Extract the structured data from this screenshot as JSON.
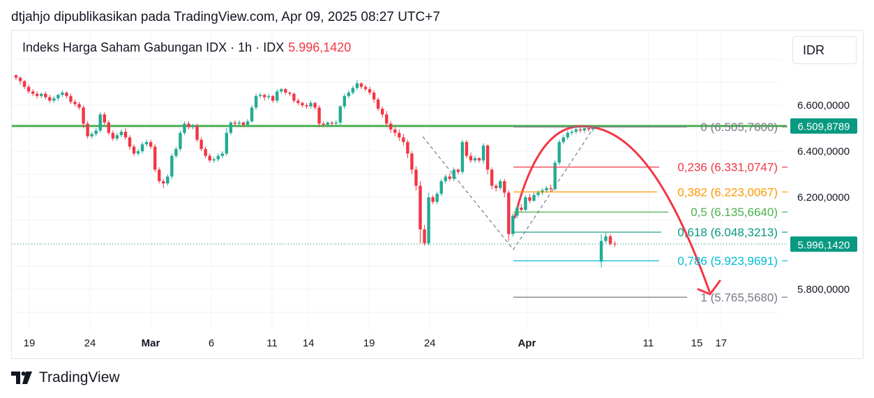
{
  "header": {
    "text": "dtjahjo dipublikasikan pada TradingView.com, Apr 09, 2025 08:27 UTC+7"
  },
  "legend": {
    "symbol": "Indeks Harga Saham Gabungan IDX · 1h · IDX",
    "price": "5.996,1420"
  },
  "currency": "IDR",
  "footer": {
    "brand": "TradingView"
  },
  "colors": {
    "up": "#22ab94",
    "down": "#f23645",
    "support": "#4caf50",
    "arrow": "#f23645",
    "grid": "#f0f3fa"
  },
  "chart_data": {
    "type": "candlestick",
    "y_ticks": [
      {
        "value": 6600,
        "label": "6.600,0000"
      },
      {
        "value": 6400,
        "label": "6.400,0000"
      },
      {
        "value": 6200,
        "label": "6.200,0000"
      },
      {
        "value": 5800,
        "label": "5.800,0000"
      }
    ],
    "x_ticks": [
      {
        "day": 19,
        "label": "19",
        "bold": false
      },
      {
        "day": 24,
        "label": "24",
        "bold": false
      },
      {
        "day": 29,
        "label": "Mar",
        "bold": true
      },
      {
        "day": 34,
        "label": "6",
        "bold": false
      },
      {
        "day": 39,
        "label": "11",
        "bold": false
      },
      {
        "day": 42,
        "label": "14",
        "bold": false
      },
      {
        "day": 47,
        "label": "19",
        "bold": false
      },
      {
        "day": 52,
        "label": "24",
        "bold": false
      },
      {
        "day": 60,
        "label": "Apr",
        "bold": true
      },
      {
        "day": 70,
        "label": "11",
        "bold": false
      },
      {
        "day": 74,
        "label": "15",
        "bold": false
      },
      {
        "day": 76,
        "label": "17",
        "bold": false
      }
    ],
    "last_price": {
      "value": 5996.142,
      "label": "5.996,1420"
    },
    "support_line": {
      "value": 6509.8789,
      "label": "6.509,8789"
    },
    "fibonacci": [
      {
        "label": "0 (6.505,7600)",
        "value": 6505.76,
        "color": "#787b86"
      },
      {
        "label": "0,236 (6.331,0747)",
        "value": 6331.0747,
        "color": "#f23645"
      },
      {
        "label": "0,382 (6.223,0067)",
        "value": 6223.0067,
        "color": "#ff9800"
      },
      {
        "label": "0,5 (6.135,6640)",
        "value": 6135.664,
        "color": "#4caf50"
      },
      {
        "label": "0,618 (6.048,3213)",
        "value": 6048.3213,
        "color": "#089981"
      },
      {
        "label": "0,786 (5.923,9691)",
        "value": 5923.9691,
        "color": "#00bcd4"
      },
      {
        "label": "1 (5.765,5680)",
        "value": 5765.568,
        "color": "#787b86"
      }
    ],
    "candles": [
      [
        6730,
        6720,
        6735,
        6710
      ],
      [
        6720,
        6705,
        6725,
        6690
      ],
      [
        6705,
        6680,
        6710,
        6670
      ],
      [
        6680,
        6660,
        6690,
        6650
      ],
      [
        6660,
        6650,
        6670,
        6640
      ],
      [
        6650,
        6640,
        6660,
        6630
      ],
      [
        6640,
        6650,
        6655,
        6630
      ],
      [
        6650,
        6635,
        6660,
        6625
      ],
      [
        6635,
        6620,
        6645,
        6610
      ],
      [
        6620,
        6630,
        6640,
        6610
      ],
      [
        6630,
        6645,
        6650,
        6620
      ],
      [
        6645,
        6655,
        6665,
        6635
      ],
      [
        6655,
        6640,
        6660,
        6630
      ],
      [
        6640,
        6615,
        6650,
        6605
      ],
      [
        6615,
        6605,
        6625,
        6595
      ],
      [
        6605,
        6590,
        6615,
        6580
      ],
      [
        6590,
        6520,
        6600,
        6500
      ],
      [
        6520,
        6465,
        6530,
        6455
      ],
      [
        6465,
        6475,
        6485,
        6455
      ],
      [
        6475,
        6490,
        6500,
        6465
      ],
      [
        6490,
        6560,
        6570,
        6480
      ],
      [
        6560,
        6525,
        6570,
        6515
      ],
      [
        6525,
        6480,
        6535,
        6470
      ],
      [
        6480,
        6455,
        6490,
        6445
      ],
      [
        6455,
        6470,
        6480,
        6445
      ],
      [
        6470,
        6485,
        6495,
        6460
      ],
      [
        6485,
        6460,
        6500,
        6450
      ],
      [
        6460,
        6420,
        6470,
        6405
      ],
      [
        6420,
        6390,
        6430,
        6380
      ],
      [
        6390,
        6400,
        6410,
        6380
      ],
      [
        6400,
        6430,
        6440,
        6390
      ],
      [
        6430,
        6440,
        6450,
        6420
      ],
      [
        6440,
        6420,
        6450,
        6410
      ],
      [
        6420,
        6320,
        6430,
        6310
      ],
      [
        6320,
        6270,
        6330,
        6260
      ],
      [
        6270,
        6260,
        6280,
        6240
      ],
      [
        6260,
        6290,
        6300,
        6250
      ],
      [
        6290,
        6380,
        6390,
        6280
      ],
      [
        6380,
        6410,
        6420,
        6370
      ],
      [
        6410,
        6480,
        6490,
        6400
      ],
      [
        6480,
        6520,
        6530,
        6470
      ],
      [
        6520,
        6505,
        6530,
        6495
      ],
      [
        6505,
        6510,
        6520,
        6495
      ],
      [
        6510,
        6450,
        6520,
        6440
      ],
      [
        6450,
        6410,
        6460,
        6400
      ],
      [
        6410,
        6380,
        6420,
        6370
      ],
      [
        6380,
        6360,
        6390,
        6350
      ],
      [
        6360,
        6365,
        6375,
        6350
      ],
      [
        6365,
        6380,
        6390,
        6355
      ],
      [
        6380,
        6390,
        6400,
        6370
      ],
      [
        6390,
        6480,
        6500,
        6380
      ],
      [
        6480,
        6525,
        6530,
        6470
      ],
      [
        6525,
        6520,
        6535,
        6510
      ],
      [
        6520,
        6525,
        6535,
        6510
      ],
      [
        6525,
        6515,
        6530,
        6505
      ],
      [
        6515,
        6530,
        6540,
        6505
      ],
      [
        6530,
        6590,
        6600,
        6525
      ],
      [
        6590,
        6640,
        6650,
        6580
      ],
      [
        6640,
        6645,
        6655,
        6630
      ],
      [
        6645,
        6635,
        6650,
        6620
      ],
      [
        6635,
        6640,
        6650,
        6625
      ],
      [
        6640,
        6620,
        6645,
        6610
      ],
      [
        6620,
        6660,
        6670,
        6610
      ],
      [
        6660,
        6670,
        6675,
        6650
      ],
      [
        6670,
        6655,
        6675,
        6645
      ],
      [
        6655,
        6650,
        6660,
        6640
      ],
      [
        6650,
        6620,
        6655,
        6610
      ],
      [
        6620,
        6610,
        6630,
        6600
      ],
      [
        6610,
        6600,
        6615,
        6590
      ],
      [
        6600,
        6595,
        6610,
        6585
      ],
      [
        6595,
        6610,
        6620,
        6585
      ],
      [
        6610,
        6590,
        6615,
        6580
      ],
      [
        6590,
        6520,
        6600,
        6505
      ],
      [
        6520,
        6515,
        6530,
        6505
      ],
      [
        6515,
        6525,
        6530,
        6505
      ],
      [
        6525,
        6520,
        6530,
        6510
      ],
      [
        6520,
        6525,
        6535,
        6510
      ],
      [
        6525,
        6595,
        6600,
        6515
      ],
      [
        6595,
        6640,
        6650,
        6585
      ],
      [
        6640,
        6655,
        6665,
        6630
      ],
      [
        6655,
        6675,
        6685,
        6645
      ],
      [
        6675,
        6695,
        6710,
        6665
      ],
      [
        6695,
        6680,
        6700,
        6670
      ],
      [
        6680,
        6670,
        6690,
        6660
      ],
      [
        6670,
        6655,
        6680,
        6645
      ],
      [
        6655,
        6625,
        6665,
        6610
      ],
      [
        6625,
        6585,
        6635,
        6575
      ],
      [
        6585,
        6560,
        6595,
        6545
      ],
      [
        6560,
        6520,
        6575,
        6505
      ],
      [
        6520,
        6495,
        6530,
        6480
      ],
      [
        6495,
        6480,
        6505,
        6465
      ],
      [
        6480,
        6460,
        6495,
        6445
      ],
      [
        6460,
        6440,
        6475,
        6425
      ],
      [
        6440,
        6390,
        6450,
        6370
      ],
      [
        6390,
        6320,
        6400,
        6300
      ],
      [
        6320,
        6250,
        6335,
        6230
      ],
      [
        6250,
        6060,
        6270,
        6000
      ],
      [
        6060,
        6000,
        6080,
        5990
      ],
      [
        6000,
        6200,
        6220,
        5990
      ],
      [
        6200,
        6180,
        6210,
        6170
      ],
      [
        6180,
        6215,
        6225,
        6170
      ],
      [
        6215,
        6270,
        6280,
        6205
      ],
      [
        6270,
        6290,
        6300,
        6260
      ],
      [
        6290,
        6280,
        6305,
        6270
      ],
      [
        6280,
        6320,
        6330,
        6270
      ],
      [
        6320,
        6310,
        6325,
        6300
      ],
      [
        6310,
        6440,
        6450,
        6300
      ],
      [
        6440,
        6380,
        6450,
        6370
      ],
      [
        6380,
        6360,
        6395,
        6350
      ],
      [
        6360,
        6370,
        6380,
        6350
      ],
      [
        6370,
        6360,
        6375,
        6350
      ],
      [
        6360,
        6425,
        6435,
        6345
      ],
      [
        6425,
        6320,
        6430,
        6300
      ],
      [
        6320,
        6250,
        6330,
        6235
      ],
      [
        6250,
        6240,
        6260,
        6225
      ],
      [
        6240,
        6270,
        6280,
        6230
      ],
      [
        6270,
        6220,
        6280,
        6200
      ],
      [
        6220,
        6040,
        6230,
        6010
      ],
      [
        6040,
        6120,
        6130,
        6030
      ],
      [
        6120,
        6155,
        6165,
        6110
      ],
      [
        6155,
        6145,
        6170,
        6135
      ],
      [
        6145,
        6200,
        6210,
        6140
      ],
      [
        6200,
        6185,
        6215,
        6175
      ],
      [
        6185,
        6210,
        6220,
        6180
      ],
      [
        6210,
        6220,
        6230,
        6200
      ],
      [
        6220,
        6230,
        6240,
        6210
      ],
      [
        6230,
        6240,
        6250,
        6220
      ],
      [
        6240,
        6235,
        6255,
        6225
      ],
      [
        6235,
        6350,
        6360,
        6230
      ],
      [
        6350,
        6440,
        6450,
        6340
      ],
      [
        6440,
        6460,
        6470,
        6430
      ],
      [
        6460,
        6480,
        6490,
        6450
      ],
      [
        6480,
        6485,
        6495,
        6470
      ],
      [
        6485,
        6495,
        6505,
        6475
      ],
      [
        6495,
        6490,
        6505,
        6480
      ],
      [
        6490,
        6500,
        6510,
        6480
      ],
      [
        6500,
        6495,
        6510,
        6485
      ],
      [
        6495,
        6500,
        6505,
        6485
      ],
      [
        5920,
        6010,
        6040,
        5895
      ],
      [
        6010,
        6030,
        6045,
        6000
      ],
      [
        6030,
        5998,
        6040,
        5990
      ],
      [
        5998,
        5996,
        6010,
        5985
      ]
    ]
  }
}
